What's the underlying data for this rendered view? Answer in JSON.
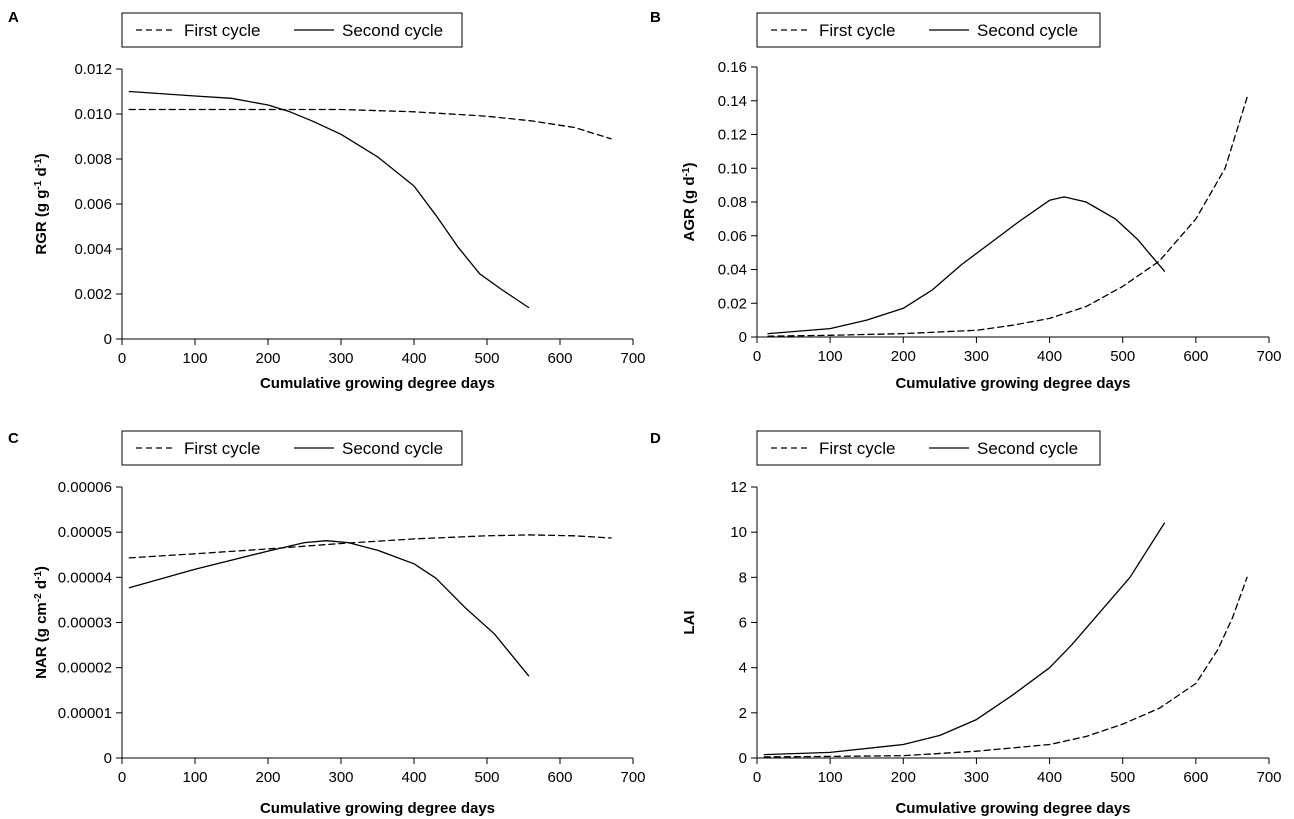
{
  "chart_data": [
    {
      "panel": "A",
      "type": "line",
      "xlabel": "Cumulative growing degree days",
      "ylabel": "RGR (g g-1 d-1)",
      "ylabel_parts": [
        {
          "text": "RGR (g g"
        },
        {
          "text": "-1",
          "sup": true
        },
        {
          "text": " d"
        },
        {
          "text": "-1",
          "sup": true
        },
        {
          "text": ")"
        }
      ],
      "xlim": [
        0,
        700
      ],
      "ylim": [
        0,
        0.012
      ],
      "xticks": [
        0,
        100,
        200,
        300,
        400,
        500,
        600,
        700
      ],
      "xtick_labels": [
        "0",
        "100",
        "200",
        "300",
        "400",
        "500",
        "600",
        "700"
      ],
      "yticks": [
        0,
        0.002,
        0.004,
        0.006,
        0.008,
        0.01,
        0.012
      ],
      "ytick_labels": [
        "0",
        "0.002",
        "0.004",
        "0.006",
        "0.008",
        "0.010",
        "0.012"
      ],
      "legend_position": "top",
      "series": [
        {
          "name": "First cycle",
          "dash": true,
          "points": [
            [
              10,
              0.0102
            ],
            [
              100,
              0.0102
            ],
            [
              200,
              0.0102
            ],
            [
              300,
              0.0102
            ],
            [
              400,
              0.0101
            ],
            [
              500,
              0.0099
            ],
            [
              560,
              0.0097
            ],
            [
              620,
              0.0094
            ],
            [
              670,
              0.0089
            ]
          ]
        },
        {
          "name": "Second cycle",
          "dash": false,
          "points": [
            [
              10,
              0.011
            ],
            [
              100,
              0.0108
            ],
            [
              150,
              0.0107
            ],
            [
              200,
              0.0104
            ],
            [
              230,
              0.0101
            ],
            [
              260,
              0.0097
            ],
            [
              300,
              0.0091
            ],
            [
              350,
              0.0081
            ],
            [
              400,
              0.0068
            ],
            [
              430,
              0.0055
            ],
            [
              460,
              0.0041
            ],
            [
              490,
              0.0029
            ],
            [
              520,
              0.0022
            ],
            [
              557,
              0.0014
            ]
          ]
        }
      ]
    },
    {
      "panel": "B",
      "type": "line",
      "xlabel": "Cumulative growing degree days",
      "ylabel": "AGR (g d-1)",
      "ylabel_parts": [
        {
          "text": "AGR (g d"
        },
        {
          "text": "-1",
          "sup": true
        },
        {
          "text": ")"
        }
      ],
      "xlim": [
        0,
        700
      ],
      "ylim": [
        0,
        0.16
      ],
      "xticks": [
        0,
        100,
        200,
        300,
        400,
        500,
        600,
        700
      ],
      "xtick_labels": [
        "0",
        "100",
        "200",
        "300",
        "400",
        "500",
        "600",
        "700"
      ],
      "yticks": [
        0,
        0.02,
        0.04,
        0.06,
        0.08,
        0.1,
        0.12,
        0.14,
        0.16
      ],
      "ytick_labels": [
        "0",
        "0.02",
        "0.04",
        "0.06",
        "0.08",
        "0.10",
        "0.12",
        "0.14",
        "0.16"
      ],
      "legend_position": "top",
      "series": [
        {
          "name": "First cycle",
          "dash": true,
          "points": [
            [
              15,
              0.0005
            ],
            [
              100,
              0.001
            ],
            [
              200,
              0.002
            ],
            [
              300,
              0.004
            ],
            [
              350,
              0.007
            ],
            [
              400,
              0.011
            ],
            [
              450,
              0.018
            ],
            [
              500,
              0.03
            ],
            [
              550,
              0.045
            ],
            [
              600,
              0.07
            ],
            [
              640,
              0.1
            ],
            [
              670,
              0.142
            ]
          ]
        },
        {
          "name": "Second cycle",
          "dash": false,
          "points": [
            [
              15,
              0.002
            ],
            [
              100,
              0.005
            ],
            [
              150,
              0.01
            ],
            [
              200,
              0.017
            ],
            [
              240,
              0.028
            ],
            [
              280,
              0.043
            ],
            [
              320,
              0.056
            ],
            [
              360,
              0.069
            ],
            [
              400,
              0.081
            ],
            [
              420,
              0.083
            ],
            [
              450,
              0.08
            ],
            [
              490,
              0.07
            ],
            [
              520,
              0.058
            ],
            [
              557,
              0.039
            ]
          ]
        }
      ]
    },
    {
      "panel": "C",
      "type": "line",
      "xlabel": "Cumulative growing degree days",
      "ylabel": "NAR (g cm-2 d-1)",
      "ylabel_parts": [
        {
          "text": "NAR (g cm"
        },
        {
          "text": "-2",
          "sup": true
        },
        {
          "text": " d"
        },
        {
          "text": "-1",
          "sup": true
        },
        {
          "text": ")"
        }
      ],
      "xlim": [
        0,
        700
      ],
      "ylim": [
        0,
        6e-05
      ],
      "xticks": [
        0,
        100,
        200,
        300,
        400,
        500,
        600,
        700
      ],
      "xtick_labels": [
        "0",
        "100",
        "200",
        "300",
        "400",
        "500",
        "600",
        "700"
      ],
      "yticks": [
        0,
        1e-05,
        2e-05,
        3e-05,
        4e-05,
        5e-05,
        6e-05
      ],
      "ytick_labels": [
        "0",
        "0.00001",
        "0.00002",
        "0.00003",
        "0.00004",
        "0.00005",
        "0.00006"
      ],
      "legend_position": "top",
      "series": [
        {
          "name": "First cycle",
          "dash": true,
          "points": [
            [
              10,
              4.43e-05
            ],
            [
              100,
              4.52e-05
            ],
            [
              200,
              4.63e-05
            ],
            [
              300,
              4.75e-05
            ],
            [
              400,
              4.85e-05
            ],
            [
              500,
              4.92e-05
            ],
            [
              560,
              4.94e-05
            ],
            [
              620,
              4.92e-05
            ],
            [
              670,
              4.87e-05
            ]
          ]
        },
        {
          "name": "Second cycle",
          "dash": false,
          "points": [
            [
              10,
              3.77e-05
            ],
            [
              100,
              4.18e-05
            ],
            [
              200,
              4.58e-05
            ],
            [
              250,
              4.77e-05
            ],
            [
              280,
              4.81e-05
            ],
            [
              310,
              4.77e-05
            ],
            [
              350,
              4.6e-05
            ],
            [
              400,
              4.3e-05
            ],
            [
              430,
              3.98e-05
            ],
            [
              470,
              3.33e-05
            ],
            [
              510,
              2.75e-05
            ],
            [
              557,
              1.82e-05
            ]
          ]
        }
      ]
    },
    {
      "panel": "D",
      "type": "line",
      "xlabel": "Cumulative growing degree days",
      "ylabel": "LAI",
      "ylabel_parts": [
        {
          "text": "LAI"
        }
      ],
      "xlim": [
        0,
        700
      ],
      "ylim": [
        0,
        12
      ],
      "xticks": [
        0,
        100,
        200,
        300,
        400,
        500,
        600,
        700
      ],
      "xtick_labels": [
        "0",
        "100",
        "200",
        "300",
        "400",
        "500",
        "600",
        "700"
      ],
      "yticks": [
        0,
        2,
        4,
        6,
        8,
        10,
        12
      ],
      "ytick_labels": [
        "0",
        "2",
        "4",
        "6",
        "8",
        "10",
        "12"
      ],
      "legend_position": "top",
      "series": [
        {
          "name": "First cycle",
          "dash": true,
          "points": [
            [
              10,
              0.05
            ],
            [
              100,
              0.07
            ],
            [
              200,
              0.1
            ],
            [
              300,
              0.3
            ],
            [
              400,
              0.6
            ],
            [
              450,
              0.95
            ],
            [
              500,
              1.5
            ],
            [
              550,
              2.2
            ],
            [
              600,
              3.3
            ],
            [
              630,
              4.8
            ],
            [
              650,
              6.2
            ],
            [
              670,
              8
            ]
          ]
        },
        {
          "name": "Second cycle",
          "dash": false,
          "points": [
            [
              10,
              0.15
            ],
            [
              100,
              0.25
            ],
            [
              200,
              0.6
            ],
            [
              250,
              1.0
            ],
            [
              300,
              1.7
            ],
            [
              350,
              2.8
            ],
            [
              400,
              4.0
            ],
            [
              430,
              5.0
            ],
            [
              470,
              6.5
            ],
            [
              510,
              8.0
            ],
            [
              557,
              10.4
            ]
          ]
        }
      ]
    }
  ]
}
